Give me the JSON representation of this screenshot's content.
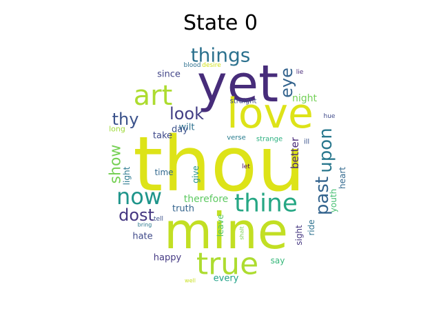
{
  "title": "State 0",
  "chart_data": {
    "type": "wordcloud",
    "title": "State 0",
    "palette": "viridis",
    "words": [
      {
        "text": "thou",
        "weight": 1.0,
        "color": "#dde318",
        "rotate": 0
      },
      {
        "text": "yet",
        "weight": 0.78,
        "color": "#472c7a",
        "rotate": 0
      },
      {
        "text": "mine",
        "weight": 0.72,
        "color": "#c2df23",
        "rotate": 0
      },
      {
        "text": "love",
        "weight": 0.7,
        "color": "#dde318",
        "rotate": 0
      },
      {
        "text": "true",
        "weight": 0.48,
        "color": "#addc30",
        "rotate": 0
      },
      {
        "text": "art",
        "weight": 0.46,
        "color": "#addc30",
        "rotate": 0
      },
      {
        "text": "thine",
        "weight": 0.4,
        "color": "#26a784",
        "rotate": 0
      },
      {
        "text": "now",
        "weight": 0.38,
        "color": "#1f958b",
        "rotate": 0
      },
      {
        "text": "things",
        "weight": 0.3,
        "color": "#2c718e",
        "rotate": 0
      },
      {
        "text": "past",
        "weight": 0.27,
        "color": "#33638d",
        "rotate": 90
      },
      {
        "text": "upon",
        "weight": 0.27,
        "color": "#2a788e",
        "rotate": 90
      },
      {
        "text": "look",
        "weight": 0.26,
        "color": "#433e85",
        "rotate": 0
      },
      {
        "text": "thy",
        "weight": 0.25,
        "color": "#3b528b",
        "rotate": 0
      },
      {
        "text": "eye",
        "weight": 0.25,
        "color": "#33638d",
        "rotate": 90
      },
      {
        "text": "dost",
        "weight": 0.25,
        "color": "#453781",
        "rotate": 0
      },
      {
        "text": "show",
        "weight": 0.22,
        "color": "#75d054",
        "rotate": 90
      },
      {
        "text": "better",
        "weight": 0.16,
        "color": "#482878",
        "rotate": 90
      },
      {
        "text": "therefore",
        "weight": 0.15,
        "color": "#5ec962",
        "rotate": 0
      },
      {
        "text": "night",
        "weight": 0.15,
        "color": "#73d056",
        "rotate": 0
      },
      {
        "text": "since",
        "weight": 0.14,
        "color": "#414487",
        "rotate": 0
      },
      {
        "text": "wilt",
        "weight": 0.14,
        "color": "#2d708e",
        "rotate": 0
      },
      {
        "text": "take",
        "weight": 0.14,
        "color": "#3e4989",
        "rotate": 0
      },
      {
        "text": "day",
        "weight": 0.14,
        "color": "#3b528b",
        "rotate": 0
      },
      {
        "text": "truth",
        "weight": 0.14,
        "color": "#33638d",
        "rotate": 0
      },
      {
        "text": "hate",
        "weight": 0.14,
        "color": "#3e4989",
        "rotate": 0
      },
      {
        "text": "happy",
        "weight": 0.14,
        "color": "#443983",
        "rotate": 0
      },
      {
        "text": "every",
        "weight": 0.14,
        "color": "#1fa187",
        "rotate": 0
      },
      {
        "text": "say",
        "weight": 0.13,
        "color": "#35b779",
        "rotate": 0
      },
      {
        "text": "time",
        "weight": 0.13,
        "color": "#31688e",
        "rotate": 0
      },
      {
        "text": "give",
        "weight": 0.13,
        "color": "#21918c",
        "rotate": 90
      },
      {
        "text": "light",
        "weight": 0.13,
        "color": "#2a788e",
        "rotate": 90
      },
      {
        "text": "youth",
        "weight": 0.13,
        "color": "#44bf70",
        "rotate": 90
      },
      {
        "text": "heart",
        "weight": 0.13,
        "color": "#31688e",
        "rotate": 90
      },
      {
        "text": "sight",
        "weight": 0.13,
        "color": "#453781",
        "rotate": 90
      },
      {
        "text": "ride",
        "weight": 0.13,
        "color": "#2c718e",
        "rotate": 90
      },
      {
        "text": "leave",
        "weight": 0.12,
        "color": "#52c569",
        "rotate": 90
      },
      {
        "text": "long",
        "weight": 0.11,
        "color": "#9fda3a",
        "rotate": 0
      },
      {
        "text": "verse",
        "weight": 0.1,
        "color": "#287c8e",
        "rotate": 0
      },
      {
        "text": "strange",
        "weight": 0.1,
        "color": "#2ab07f",
        "rotate": 0
      },
      {
        "text": "straight",
        "weight": 0.1,
        "color": "#3e4989",
        "rotate": 0
      },
      {
        "text": "ill",
        "weight": 0.1,
        "color": "#3b528b",
        "rotate": 0
      },
      {
        "text": "hue",
        "weight": 0.09,
        "color": "#3e4989",
        "rotate": 0
      },
      {
        "text": "tell",
        "weight": 0.09,
        "color": "#3b528b",
        "rotate": 0
      },
      {
        "text": "let",
        "weight": 0.09,
        "color": "#440154",
        "rotate": 0
      },
      {
        "text": "lie",
        "weight": 0.09,
        "color": "#482878",
        "rotate": 0
      },
      {
        "text": "blood",
        "weight": 0.09,
        "color": "#2d708e",
        "rotate": 0
      },
      {
        "text": "desire",
        "weight": 0.09,
        "color": "#d2e21b",
        "rotate": 0
      },
      {
        "text": "bring",
        "weight": 0.08,
        "color": "#2a788e",
        "rotate": 0
      },
      {
        "text": "shalt",
        "weight": 0.08,
        "color": "#7ad151",
        "rotate": 90
      },
      {
        "text": "well",
        "weight": 0.08,
        "color": "#c8e020",
        "rotate": 0
      }
    ]
  }
}
